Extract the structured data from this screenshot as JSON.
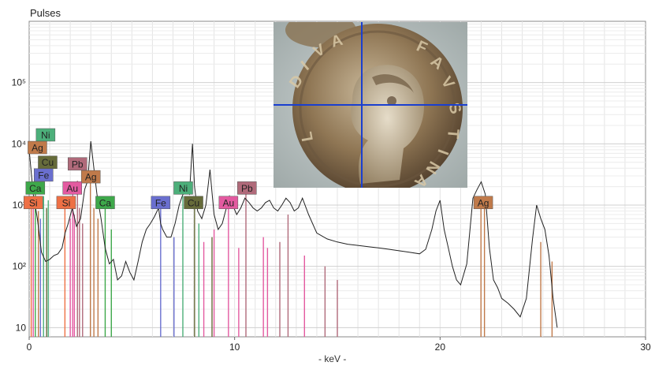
{
  "chart_data": {
    "type": "line",
    "title": "",
    "ylabel": "Pulses",
    "xlabel": "- keV -",
    "xlim": [
      0,
      30
    ],
    "ylim_log10": [
      0.85,
      6.0
    ],
    "y_scale": "log",
    "x_ticks": [
      0,
      10,
      20,
      30
    ],
    "y_ticks": [
      {
        "value": 10,
        "label": "10"
      },
      {
        "value": 100,
        "label": "10²"
      },
      {
        "value": 1000,
        "label": "10³"
      },
      {
        "value": 10000,
        "label": "10⁴"
      },
      {
        "value": 100000,
        "label": "10⁵"
      }
    ],
    "grid": true,
    "series": [
      {
        "color": "#222222",
        "x": [
          0.0,
          0.2,
          0.4,
          0.6,
          0.8,
          1.0,
          1.2,
          1.4,
          1.6,
          1.75,
          1.9,
          2.1,
          2.3,
          2.5,
          2.7,
          2.85,
          3.0,
          3.15,
          3.3,
          3.5,
          3.7,
          3.9,
          4.1,
          4.3,
          4.5,
          4.7,
          4.9,
          5.1,
          5.3,
          5.5,
          5.7,
          5.9,
          6.1,
          6.3,
          6.4,
          6.5,
          6.7,
          6.9,
          7.1,
          7.3,
          7.45,
          7.6,
          7.8,
          7.95,
          8.05,
          8.2,
          8.4,
          8.6,
          8.8,
          8.9,
          9.0,
          9.2,
          9.4,
          9.6,
          9.75,
          9.9,
          10.1,
          10.3,
          10.5,
          10.7,
          10.9,
          11.1,
          11.3,
          11.5,
          11.7,
          11.9,
          12.1,
          12.3,
          12.5,
          12.7,
          12.9,
          13.1,
          13.3,
          13.6,
          14.0,
          14.5,
          15.0,
          15.5,
          16.0,
          16.5,
          17.0,
          17.5,
          18.0,
          18.5,
          19.0,
          19.3,
          19.6,
          19.8,
          20.0,
          20.2,
          20.4,
          20.6,
          20.8,
          21.0,
          21.3,
          21.6,
          21.8,
          22.0,
          22.2,
          22.4,
          22.6,
          22.8,
          23.0,
          23.3,
          23.6,
          23.9,
          24.2,
          24.5,
          24.7,
          24.9,
          25.1,
          25.3,
          25.5,
          25.7
        ],
        "y": [
          8000,
          1500,
          600,
          170,
          120,
          130,
          150,
          160,
          200,
          350,
          500,
          900,
          450,
          600,
          1800,
          2500,
          11000,
          4000,
          1500,
          600,
          200,
          110,
          130,
          60,
          70,
          120,
          80,
          60,
          120,
          250,
          400,
          500,
          650,
          900,
          500,
          400,
          300,
          300,
          500,
          1000,
          1400,
          1800,
          1500,
          10000,
          2000,
          800,
          600,
          1000,
          3800,
          1600,
          700,
          400,
          500,
          900,
          1400,
          1000,
          700,
          900,
          1300,
          1100,
          900,
          800,
          900,
          1100,
          1200,
          900,
          800,
          1000,
          1300,
          1100,
          800,
          900,
          1300,
          700,
          350,
          280,
          250,
          230,
          220,
          210,
          200,
          190,
          180,
          170,
          160,
          190,
          400,
          800,
          1200,
          400,
          200,
          100,
          60,
          50,
          110,
          1300,
          1800,
          2400,
          1500,
          200,
          60,
          45,
          30,
          25,
          20,
          15,
          30,
          280,
          1000,
          600,
          400,
          150,
          30,
          10
        ]
      }
    ],
    "annotations": [
      {
        "label": "Ni",
        "x": 0.8,
        "y": 14000,
        "color": "#4caf7a"
      },
      {
        "label": "Ag",
        "x": 0.4,
        "y": 8700,
        "color": "#c07a4a"
      },
      {
        "label": "Cu",
        "x": 0.9,
        "y": 5000,
        "color": "#666b3a"
      },
      {
        "label": "Fe",
        "x": 0.7,
        "y": 3100,
        "color": "#6a6fcf"
      },
      {
        "label": "Ca",
        "x": 0.3,
        "y": 1900,
        "color": "#3ea84a"
      },
      {
        "label": "Si",
        "x": 0.2,
        "y": 1100,
        "color": "#ee7045"
      },
      {
        "label": "Pb",
        "x": 2.35,
        "y": 4700,
        "color": "#b06a7a"
      },
      {
        "label": "Ag",
        "x": 3.0,
        "y": 2900,
        "color": "#c07a4a"
      },
      {
        "label": "Au",
        "x": 2.1,
        "y": 1900,
        "color": "#e35aa0"
      },
      {
        "label": "Si",
        "x": 1.8,
        "y": 1100,
        "color": "#ee7045"
      },
      {
        "label": "Ca",
        "x": 3.7,
        "y": 1100,
        "color": "#3ea84a"
      },
      {
        "label": "Ni",
        "x": 7.5,
        "y": 1900,
        "color": "#4caf7a"
      },
      {
        "label": "Fe",
        "x": 6.4,
        "y": 1100,
        "color": "#6a6fcf"
      },
      {
        "label": "Cu",
        "x": 8.0,
        "y": 1100,
        "color": "#666b3a"
      },
      {
        "label": "Pb",
        "x": 10.6,
        "y": 1900,
        "color": "#b06a7a"
      },
      {
        "label": "Au",
        "x": 9.7,
        "y": 1100,
        "color": "#e35aa0"
      },
      {
        "label": "Ag",
        "x": 22.1,
        "y": 1100,
        "color": "#c07a4a"
      }
    ],
    "marker_lines": [
      {
        "x": 0.1,
        "h": 1200,
        "color": "#ee7045"
      },
      {
        "x": 0.2,
        "h": 900,
        "color": "#e35aa0"
      },
      {
        "x": 0.3,
        "h": 1800,
        "color": "#3ea84a"
      },
      {
        "x": 0.45,
        "h": 800,
        "color": "#c07a4a"
      },
      {
        "x": 0.55,
        "h": 600,
        "color": "#6a6fcf"
      },
      {
        "x": 0.7,
        "h": 1400,
        "color": "#4caf7a"
      },
      {
        "x": 0.85,
        "h": 900,
        "color": "#666b3a"
      },
      {
        "x": 0.93,
        "h": 1200,
        "color": "#4caf7a"
      },
      {
        "x": 1.74,
        "h": 1000,
        "color": "#ee7045"
      },
      {
        "x": 2.0,
        "h": 600,
        "color": "#e35aa0"
      },
      {
        "x": 2.12,
        "h": 1600,
        "color": "#e35aa0"
      },
      {
        "x": 2.2,
        "h": 700,
        "color": "#e35aa0"
      },
      {
        "x": 2.35,
        "h": 2500,
        "color": "#b06a7a"
      },
      {
        "x": 2.45,
        "h": 900,
        "color": "#b06a7a"
      },
      {
        "x": 2.6,
        "h": 500,
        "color": "#b06a7a"
      },
      {
        "x": 2.98,
        "h": 2800,
        "color": "#c07a4a"
      },
      {
        "x": 3.15,
        "h": 900,
        "color": "#c07a4a"
      },
      {
        "x": 3.35,
        "h": 600,
        "color": "#c07a4a"
      },
      {
        "x": 3.7,
        "h": 1100,
        "color": "#3ea84a"
      },
      {
        "x": 4.0,
        "h": 400,
        "color": "#3ea84a"
      },
      {
        "x": 6.4,
        "h": 900,
        "color": "#6a6fcf"
      },
      {
        "x": 7.05,
        "h": 300,
        "color": "#6a6fcf"
      },
      {
        "x": 7.48,
        "h": 1400,
        "color": "#4caf7a"
      },
      {
        "x": 8.05,
        "h": 1100,
        "color": "#666b3a"
      },
      {
        "x": 8.26,
        "h": 500,
        "color": "#4caf7a"
      },
      {
        "x": 8.9,
        "h": 300,
        "color": "#666b3a"
      },
      {
        "x": 8.5,
        "h": 250,
        "color": "#e35aa0"
      },
      {
        "x": 9.0,
        "h": 400,
        "color": "#e35aa0"
      },
      {
        "x": 9.7,
        "h": 1100,
        "color": "#e35aa0"
      },
      {
        "x": 10.2,
        "h": 200,
        "color": "#e35aa0"
      },
      {
        "x": 10.55,
        "h": 1600,
        "color": "#b06a7a"
      },
      {
        "x": 11.4,
        "h": 300,
        "color": "#e35aa0"
      },
      {
        "x": 11.6,
        "h": 200,
        "color": "#e35aa0"
      },
      {
        "x": 12.2,
        "h": 250,
        "color": "#b06a7a"
      },
      {
        "x": 12.6,
        "h": 700,
        "color": "#b06a7a"
      },
      {
        "x": 13.4,
        "h": 150,
        "color": "#e35aa0"
      },
      {
        "x": 14.4,
        "h": 100,
        "color": "#b06a7a"
      },
      {
        "x": 15.0,
        "h": 60,
        "color": "#b06a7a"
      },
      {
        "x": 21.99,
        "h": 900,
        "color": "#c07a4a"
      },
      {
        "x": 22.16,
        "h": 900,
        "color": "#c07a4a"
      },
      {
        "x": 24.9,
        "h": 250,
        "color": "#c07a4a"
      },
      {
        "x": 25.45,
        "h": 120,
        "color": "#c07a4a"
      }
    ]
  }
}
